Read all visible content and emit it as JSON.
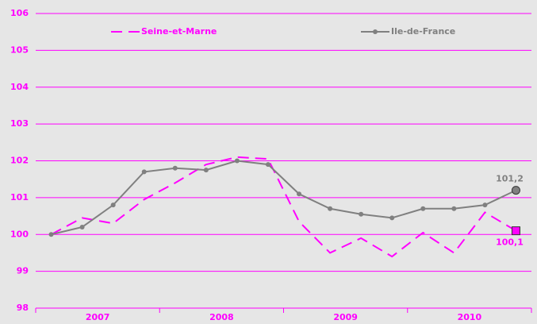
{
  "chart_data": {
    "type": "line",
    "categories": [
      null,
      null,
      null,
      null,
      null,
      null,
      null,
      null,
      null,
      null,
      null,
      null,
      null,
      null,
      null,
      null
    ],
    "x_groups": [
      "2007",
      "2008",
      "2009",
      "2010"
    ],
    "ylim": [
      98,
      106
    ],
    "yticks": [
      98,
      99,
      100,
      101,
      102,
      103,
      104,
      105,
      106
    ],
    "grid": true,
    "series": [
      {
        "name": "Seine-et-Marne",
        "color": "#ff00ff",
        "dashed": true,
        "markers": false,
        "end_marker": "square",
        "label_position": "below",
        "values": [
          100.0,
          100.45,
          100.3,
          100.95,
          101.4,
          101.9,
          102.1,
          102.05,
          100.35,
          99.5,
          99.9,
          99.4,
          100.05,
          99.5,
          100.6,
          100.1
        ],
        "value_labels": [
          null,
          null,
          null,
          null,
          null,
          null,
          null,
          null,
          null,
          null,
          null,
          null,
          null,
          null,
          null,
          "100,1"
        ]
      },
      {
        "name": "Ile-de-France",
        "color": "#808080",
        "dashed": false,
        "markers": true,
        "end_marker": "circle",
        "label_position": "above",
        "values": [
          100.0,
          100.2,
          100.8,
          101.7,
          101.8,
          101.75,
          102.0,
          101.9,
          101.1,
          100.7,
          100.55,
          100.45,
          100.7,
          100.7,
          100.8,
          101.2
        ],
        "value_labels": [
          null,
          null,
          null,
          null,
          null,
          null,
          null,
          null,
          null,
          null,
          null,
          null,
          null,
          null,
          null,
          "101,2"
        ]
      }
    ]
  }
}
